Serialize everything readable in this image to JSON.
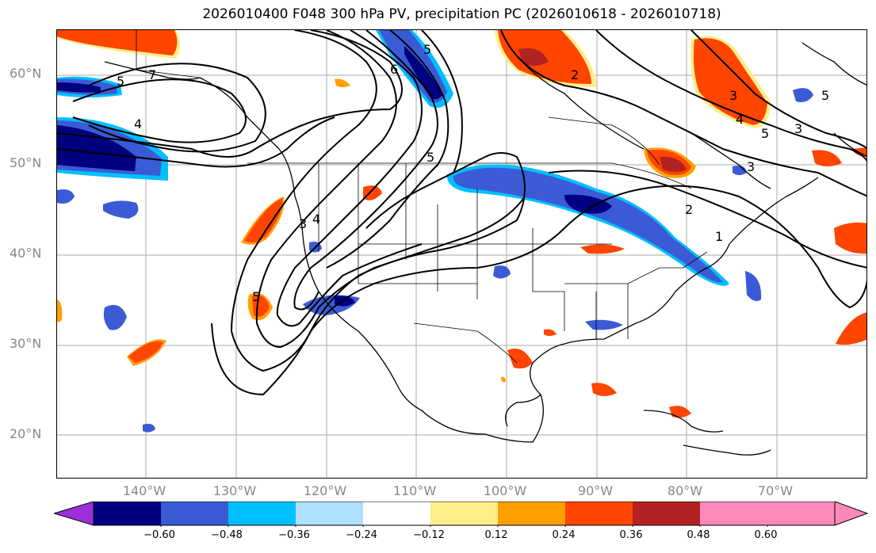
{
  "title": "2026010400 F048 300 hPa PV, precipitation PC (2026010618 - 2026010718)",
  "lat_labels": [
    "60°N",
    "50°N",
    "40°N",
    "30°N",
    "20°N"
  ],
  "lon_labels": [
    "140°W",
    "130°W",
    "120°W",
    "110°W",
    "100°W",
    "90°W",
    "80°W",
    "70°W"
  ],
  "colorbar": {
    "ticks": [
      "−0.60",
      "−0.48",
      "−0.36",
      "−0.24",
      "−0.12",
      "0.12",
      "0.24",
      "0.36",
      "0.48",
      "0.60"
    ],
    "colors": [
      "#9b30d9",
      "#000080",
      "#3b5bd6",
      "#00bfff",
      "#b0e0ff",
      "#ffffff",
      "#ffee88",
      "#ffa000",
      "#ff4500",
      "#b22222",
      "#ff88bb"
    ]
  },
  "contour_labels": [
    "7",
    "5",
    "4",
    "6",
    "5",
    "5",
    "3",
    "4",
    "5",
    "2",
    "3",
    "4",
    "5",
    "3",
    "2",
    "1",
    "5",
    "3"
  ]
}
